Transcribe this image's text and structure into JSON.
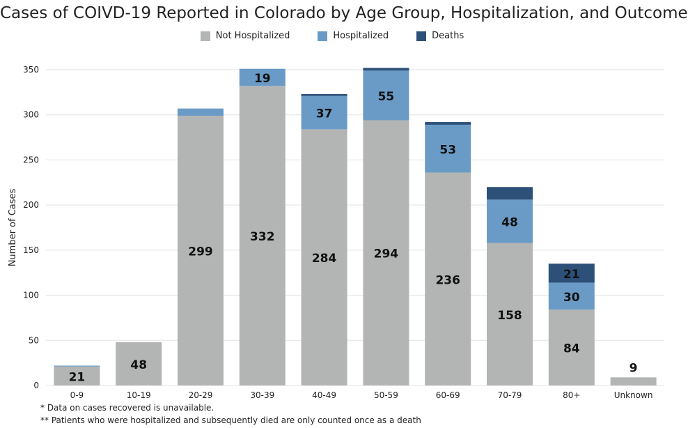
{
  "chart_data": {
    "type": "bar",
    "stacked": true,
    "title": "Cases of COIVD-19 Reported in Colorado by Age Group, Hospitalization, and Outcome",
    "xlabel": "",
    "ylabel": "Number of Cases",
    "ylim": [
      0,
      350
    ],
    "yticks": [
      0,
      50,
      100,
      150,
      200,
      250,
      300,
      350
    ],
    "grid": true,
    "legend_position": "top-center",
    "categories": [
      "0-9",
      "10-19",
      "20-29",
      "30-39",
      "40-49",
      "50-59",
      "60-69",
      "70-79",
      "80+",
      "Unknown"
    ],
    "series": [
      {
        "name": "Not Hospitalized",
        "color": "#b3b5b5",
        "values": [
          21,
          48,
          299,
          332,
          284,
          294,
          236,
          158,
          84,
          9
        ]
      },
      {
        "name": "Hospitalized",
        "color": "#6a9bc6",
        "values": [
          1,
          0,
          8,
          19,
          37,
          55,
          53,
          48,
          30,
          0
        ]
      },
      {
        "name": "Deaths",
        "color": "#2c5078",
        "values": [
          0,
          0,
          0,
          0,
          2,
          3,
          3,
          14,
          21,
          0
        ]
      }
    ],
    "data_labels": {
      "Not Hospitalized": [
        "21",
        "48",
        "299",
        "332",
        "284",
        "294",
        "236",
        "158",
        "84",
        "9"
      ],
      "Hospitalized": [
        "",
        "",
        "",
        "19",
        "37",
        "55",
        "53",
        "48",
        "30",
        ""
      ],
      "Deaths": [
        "",
        "",
        "",
        "",
        "",
        "",
        "",
        "",
        "21",
        ""
      ]
    }
  },
  "footnotes": [
    "* Data on cases recovered is unavailable.",
    "** Patients who were hospitalized and subsequently died are only counted once as a death"
  ]
}
